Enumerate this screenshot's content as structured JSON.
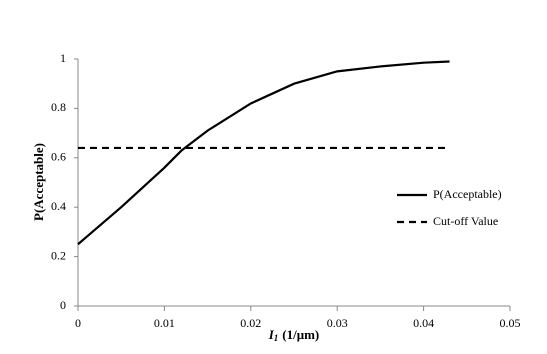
{
  "chart_data": {
    "type": "line",
    "x_label": {
      "symbol": "I",
      "subscript": "1",
      "unit": "(1/μm)"
    },
    "y_label": "P(Acceptable)",
    "xlim": [
      0,
      0.05
    ],
    "xticks": [
      0,
      0.01,
      0.02,
      0.03,
      0.04,
      0.05
    ],
    "ylim": [
      0,
      1
    ],
    "yticks": [
      0,
      0.2,
      0.4,
      0.6,
      0.8,
      1
    ],
    "grid": false,
    "legend": "right",
    "series": [
      {
        "name": "P(Acceptable)",
        "color": "#000000",
        "dash": false,
        "x": [
          0,
          0.001,
          0.005,
          0.01,
          0.012,
          0.015,
          0.02,
          0.025,
          0.03,
          0.035,
          0.04,
          0.043
        ],
        "values": [
          0.25,
          0.28,
          0.4,
          0.56,
          0.63,
          0.71,
          0.82,
          0.9,
          0.95,
          0.97,
          0.985,
          0.99
        ]
      },
      {
        "name": "Cut-off Value",
        "color": "#000000",
        "dash": true,
        "x": [
          0,
          0.043
        ],
        "values": [
          0.64,
          0.64
        ]
      }
    ]
  }
}
